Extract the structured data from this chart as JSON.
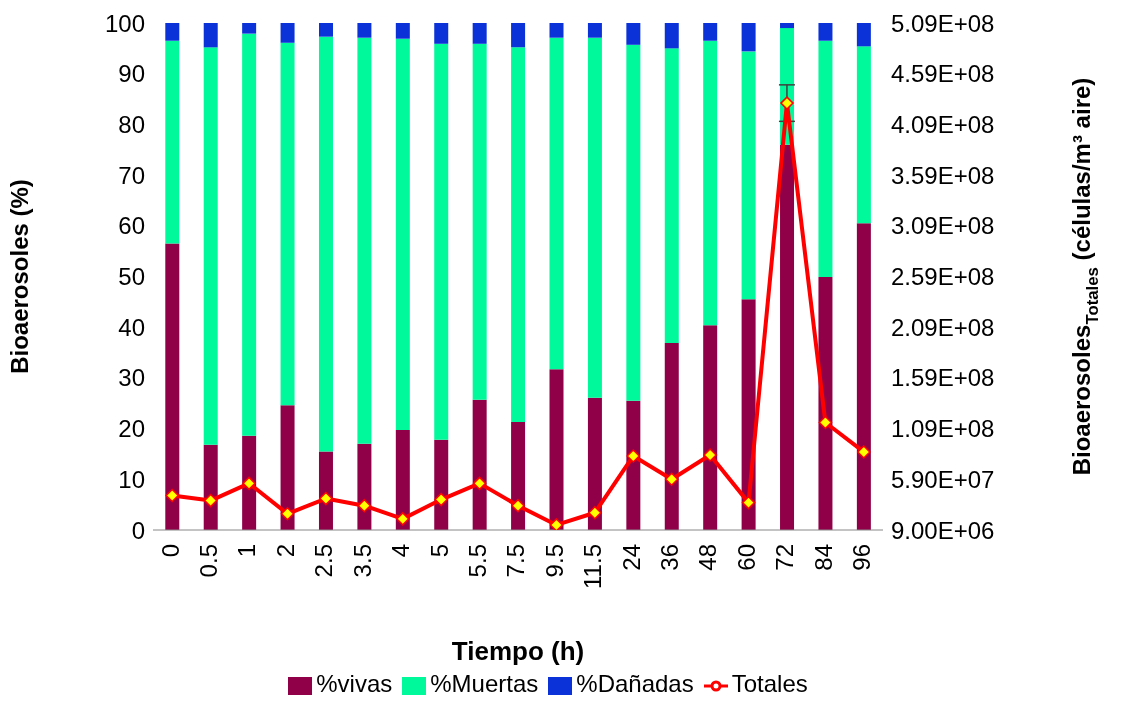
{
  "chart_data": {
    "type": "bar",
    "stacked": true,
    "xlabel": "Tiempo (h)",
    "ylabel": "Bioaerosoles (%)",
    "y2label": "Bioaerosoles$_{Totales}$ (células/m³ aire)",
    "categories": [
      "0",
      "0.5",
      "1",
      "2",
      "2.5",
      "3.5",
      "4",
      "5",
      "5.5",
      "7.5",
      "9.5",
      "11.5",
      "24",
      "36",
      "48",
      "60",
      "72",
      "84",
      "96"
    ],
    "series": [
      {
        "name": "%vivas",
        "color": "#900048",
        "values": [
          56.5,
          16.8,
          18.6,
          24.6,
          15.5,
          17,
          19.7,
          17.8,
          25.7,
          21.3,
          31.7,
          26.1,
          25.5,
          36.9,
          40.4,
          45.5,
          76,
          49.9,
          60.5
        ]
      },
      {
        "name": "%Muertas",
        "color": "#00f99a",
        "values": [
          40,
          78.4,
          79.3,
          71.5,
          81.8,
          80.1,
          77.2,
          78.1,
          70.2,
          73.9,
          65.4,
          71,
          70.2,
          58.1,
          56.1,
          48.9,
          23,
          46.6,
          34.9
        ]
      },
      {
        "name": "%Dañadas",
        "color": "#0a32d8",
        "values": [
          3.5,
          4.8,
          2.1,
          3.9,
          2.7,
          2.9,
          3.1,
          4.1,
          4.1,
          4.8,
          2.9,
          2.9,
          4.3,
          5,
          3.5,
          5.6,
          1,
          3.5,
          4.6
        ]
      },
      {
        "name": "Totales",
        "type": "line",
        "axis": "y2",
        "color": "#ff0000",
        "values": [
          43000000,
          38000000,
          55000000,
          25000000,
          40000000,
          33000000,
          20000000,
          39000000,
          55000000,
          33000000,
          14000000,
          26000000,
          82000000,
          59000000,
          83000000,
          36000000,
          430000000,
          115000000,
          86000000
        ],
        "errors": [
          null,
          null,
          null,
          null,
          null,
          null,
          null,
          null,
          null,
          null,
          null,
          null,
          null,
          null,
          null,
          null,
          18000000,
          null,
          null
        ]
      }
    ],
    "ylim": [
      0,
      100
    ],
    "yticks": [
      0,
      10,
      20,
      30,
      40,
      50,
      60,
      70,
      80,
      90,
      100
    ],
    "y2lim": [
      9000000,
      509000000
    ],
    "y2ticks": [
      {
        "value": 9000000,
        "label": "9.00E+06"
      },
      {
        "value": 59000000,
        "label": "5.90E+07"
      },
      {
        "value": 109000000,
        "label": "1.09E+08"
      },
      {
        "value": 159000000,
        "label": "1.59E+08"
      },
      {
        "value": 209000000,
        "label": "2.09E+08"
      },
      {
        "value": 259000000,
        "label": "2.59E+08"
      },
      {
        "value": 309000000,
        "label": "3.09E+08"
      },
      {
        "value": 359000000,
        "label": "3.59E+08"
      },
      {
        "value": 409000000,
        "label": "4.09E+08"
      },
      {
        "value": 459000000,
        "label": "4.59E+08"
      },
      {
        "value": 509000000,
        "label": "5.09E+08"
      }
    ],
    "legend": "bottom",
    "marker": "diamond",
    "line_style": "solid",
    "grid": false
  }
}
